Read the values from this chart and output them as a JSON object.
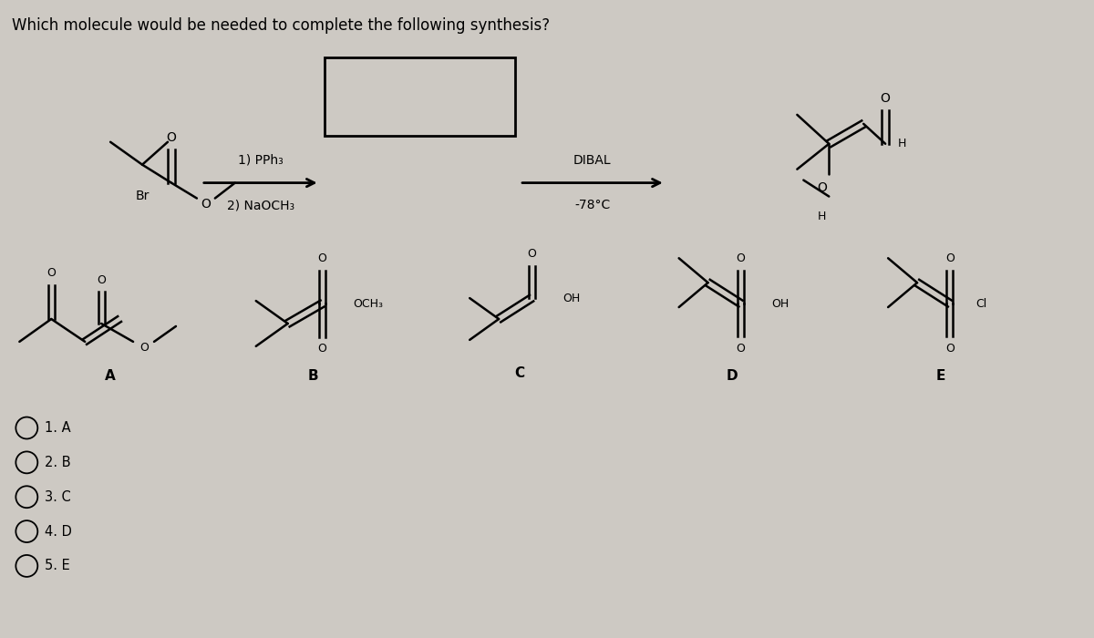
{
  "title": "Which molecule would be needed to complete the following synthesis?",
  "bg_color": "#cdc9c3",
  "title_fontsize": 12,
  "choices": [
    "1. A",
    "2. B",
    "3. C",
    "4. D",
    "5. E"
  ],
  "reaction_label1": "1) PPh₃",
  "reaction_label2": "2) NaOCH₃",
  "dibal_label1": "DIBAL",
  "dibal_label2": "-78°C"
}
